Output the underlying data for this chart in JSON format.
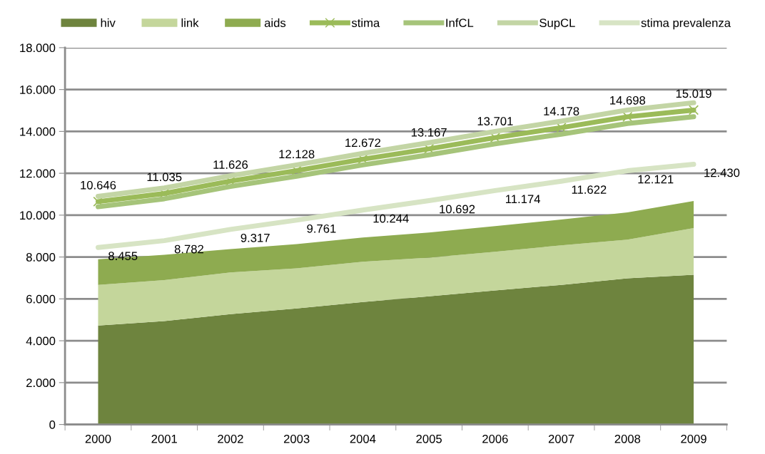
{
  "chart_data": {
    "type": "area",
    "stacked": true,
    "categories": [
      "2000",
      "2001",
      "2002",
      "2003",
      "2004",
      "2005",
      "2006",
      "2007",
      "2008",
      "2009"
    ],
    "series": [
      {
        "name": "hiv",
        "color": "#6e843e",
        "values": [
          4730,
          4940,
          5270,
          5540,
          5850,
          6120,
          6400,
          6670,
          6980,
          7150
        ]
      },
      {
        "name": "link",
        "color": "#c4d69b",
        "values": [
          1940,
          1960,
          1990,
          1920,
          1920,
          1850,
          1850,
          1890,
          1850,
          2230
        ]
      },
      {
        "name": "aids",
        "color": "#8eab50",
        "values": [
          1220,
          1210,
          1120,
          1160,
          1160,
          1200,
          1230,
          1230,
          1300,
          1300
        ]
      },
      {
        "name": "stima",
        "type": "line",
        "marker": "cross",
        "color": "#9bbb59",
        "values": [
          10646,
          11035,
          11626,
          12128,
          12672,
          13167,
          13701,
          14178,
          14698,
          15019
        ],
        "value_labels": [
          "10.646",
          "11.035",
          "11.626",
          "12.128",
          "12.672",
          "13.167",
          "13.701",
          "14.178",
          "14.698",
          "15.019"
        ]
      },
      {
        "name": "InfCL",
        "type": "line",
        "color": "#a6c47a",
        "values": [
          10400,
          10780,
          11370,
          11860,
          12400,
          12880,
          13410,
          13870,
          14380,
          14700
        ]
      },
      {
        "name": "SupCL",
        "type": "line",
        "color": "#c3d5a5",
        "values": [
          10900,
          11300,
          11880,
          12400,
          12950,
          13460,
          14000,
          14490,
          15020,
          15370
        ]
      },
      {
        "name": "stima prevalenza",
        "type": "line",
        "color": "#d7e4c4",
        "values": [
          8455,
          8782,
          9317,
          9761,
          10244,
          10692,
          11174,
          11622,
          12121,
          12430
        ],
        "value_labels": [
          "8.455",
          "8.782",
          "9.317",
          "9.761",
          "10.244",
          "10.692",
          "11.174",
          "11.622",
          "12.121",
          "12.430"
        ]
      }
    ],
    "ylim": [
      0,
      18000
    ],
    "yticks": [
      {
        "value": 0,
        "label": "0"
      },
      {
        "value": 2000,
        "label": "2.000"
      },
      {
        "value": 4000,
        "label": "4.000"
      },
      {
        "value": 6000,
        "label": "6.000"
      },
      {
        "value": 8000,
        "label": "8.000"
      },
      {
        "value": 10000,
        "label": "10.000"
      },
      {
        "value": 12000,
        "label": "12.000"
      },
      {
        "value": 14000,
        "label": "14.000"
      },
      {
        "value": 16000,
        "label": "16.000"
      },
      {
        "value": 18000,
        "label": "18.000"
      }
    ],
    "grid": "y",
    "legend": "top",
    "line_style": "solid"
  }
}
